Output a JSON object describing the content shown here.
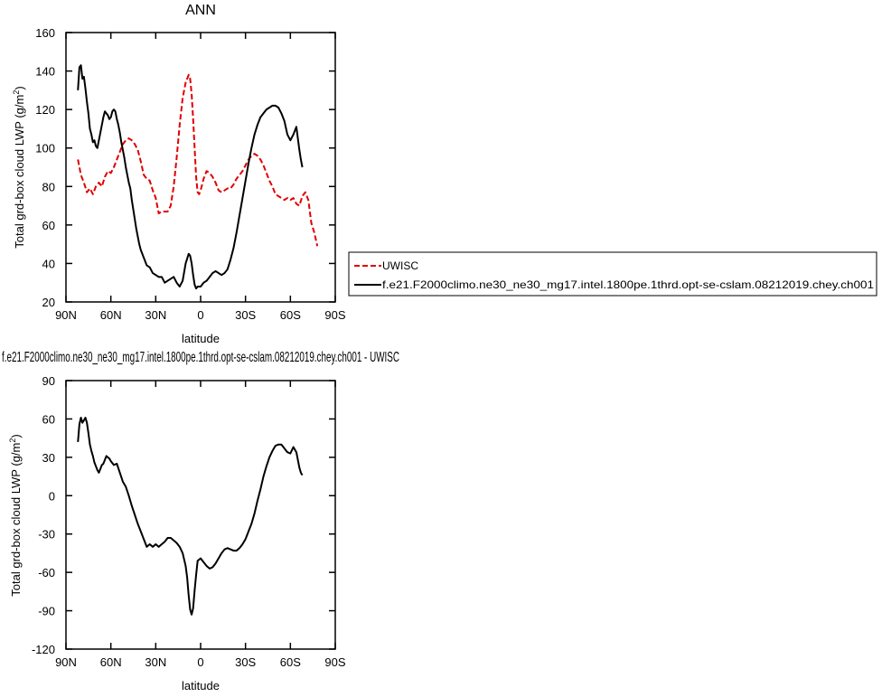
{
  "chart_data": [
    {
      "type": "line",
      "title": "ANN",
      "xlabel": "latitude",
      "ylabel": "Total grd-box cloud LWP (g/m",
      "ylabel_sup": "2",
      "ylabel_end": ")",
      "xlim": [
        90,
        -90
      ],
      "ylim": [
        20,
        160
      ],
      "xticks": [
        90,
        60,
        30,
        0,
        -30,
        -60,
        -90
      ],
      "xtick_labels": [
        "90N",
        "60N",
        "30N",
        "0",
        "30S",
        "60S",
        "90S"
      ],
      "yticks": [
        20,
        40,
        60,
        80,
        100,
        120,
        140,
        160
      ],
      "ytick_labels": [
        "20",
        "40",
        "60",
        "80",
        "100",
        "120",
        "140",
        "160"
      ],
      "legend": "right",
      "series": [
        {
          "name": "UWISC",
          "color": "#e00000",
          "dash": "dashed",
          "x": [
            82,
            80,
            78,
            76,
            74,
            72,
            70,
            68,
            66,
            64,
            62,
            60,
            58,
            56,
            54,
            52,
            50,
            48,
            46,
            44,
            42,
            40,
            38,
            36,
            34,
            32,
            30,
            28,
            26,
            24,
            22,
            20,
            18,
            16,
            14,
            12,
            10,
            8,
            7,
            6,
            5,
            4,
            3,
            2,
            1,
            0,
            -2,
            -4,
            -6,
            -8,
            -10,
            -12,
            -14,
            -16,
            -18,
            -20,
            -22,
            -24,
            -26,
            -28,
            -30,
            -32,
            -34,
            -36,
            -38,
            -40,
            -42,
            -44,
            -46,
            -48,
            -50,
            -52,
            -54,
            -56,
            -58,
            -60,
            -62,
            -64,
            -66,
            -68,
            -70,
            -72,
            -74,
            -76,
            -78
          ],
          "y": [
            94,
            86,
            82,
            77,
            79,
            76,
            80,
            82,
            80,
            85,
            88,
            87,
            90,
            94,
            98,
            102,
            104,
            105,
            104,
            102,
            99,
            93,
            86,
            84,
            83,
            78,
            74,
            66,
            67,
            67,
            67,
            70,
            80,
            95,
            112,
            126,
            134,
            138,
            136,
            128,
            115,
            100,
            85,
            77,
            76,
            78,
            84,
            88,
            87,
            85,
            82,
            78,
            77,
            78,
            79,
            79,
            81,
            84,
            86,
            88,
            91,
            94,
            96,
            97,
            96,
            94,
            91,
            87,
            83,
            80,
            76,
            75,
            74,
            73,
            74,
            73,
            74,
            71,
            70,
            75,
            77,
            73,
            61,
            56,
            49
          ]
        },
        {
          "name": "f.e21.F2000climo.ne30_ne30_mg17.intel.1800pe.1thrd.opt-se-cslam.08212019.chey.ch001",
          "color": "#000000",
          "dash": "solid",
          "x": [
            82,
            81,
            80,
            79,
            78,
            77,
            76,
            75,
            74,
            73,
            72,
            71,
            70,
            69,
            68,
            67,
            66,
            65,
            64,
            63,
            62,
            61,
            60,
            59,
            58,
            57,
            56,
            55,
            54,
            53,
            52,
            51,
            50,
            49,
            48,
            47,
            46,
            45,
            44,
            43,
            42,
            41,
            40,
            38,
            36,
            34,
            32,
            30,
            28,
            26,
            24,
            22,
            20,
            18,
            16,
            14,
            12,
            10,
            8,
            7,
            6,
            5,
            4,
            3,
            2,
            1,
            0,
            -2,
            -4,
            -6,
            -8,
            -10,
            -12,
            -14,
            -16,
            -18,
            -20,
            -22,
            -24,
            -26,
            -28,
            -30,
            -32,
            -34,
            -36,
            -38,
            -40,
            -42,
            -44,
            -46,
            -48,
            -50,
            -52,
            -54,
            -56,
            -58,
            -60,
            -62,
            -64,
            -65,
            -66,
            -67,
            -68
          ],
          "y": [
            130,
            142,
            143,
            136,
            137,
            131,
            124,
            118,
            110,
            107,
            103,
            104,
            101,
            100,
            104,
            108,
            112,
            116,
            119,
            118,
            117,
            115,
            116,
            119,
            120,
            119,
            115,
            112,
            108,
            103,
            99,
            95,
            90,
            86,
            82,
            79,
            73,
            68,
            63,
            58,
            54,
            50,
            47,
            43,
            39,
            38,
            35,
            34,
            33,
            33,
            30,
            31,
            32,
            33,
            30,
            28,
            31,
            40,
            45,
            44,
            40,
            34,
            29,
            27,
            28,
            28,
            28,
            30,
            31,
            33,
            35,
            36,
            35,
            34,
            35,
            37,
            42,
            48,
            56,
            65,
            74,
            83,
            92,
            100,
            107,
            112,
            116,
            118,
            120,
            121,
            122,
            122,
            121,
            118,
            114,
            107,
            104,
            107,
            111,
            105,
            99,
            94,
            90
          ]
        }
      ]
    },
    {
      "type": "line",
      "title": "f.e21.F2000climo.ne30_ne30_mg17.intel.1800pe.1thrd.opt-se-cslam.08212019.chey.ch001 - UWISC",
      "xlabel": "latitude",
      "ylabel": "Total grd-box cloud LWP (g/m",
      "ylabel_sup": "2",
      "ylabel_end": ")",
      "xlim": [
        90,
        -90
      ],
      "ylim": [
        -120,
        90
      ],
      "xticks": [
        90,
        60,
        30,
        0,
        -30,
        -60,
        -90
      ],
      "xtick_labels": [
        "90N",
        "60N",
        "30N",
        "0",
        "30S",
        "60S",
        "90S"
      ],
      "yticks": [
        -120,
        -90,
        -60,
        -30,
        0,
        30,
        60,
        90
      ],
      "ytick_labels": [
        "-120",
        "-90",
        "-60",
        "-30",
        "0",
        "30",
        "60",
        "90"
      ],
      "series": [
        {
          "name": "",
          "color": "#000000",
          "dash": "solid",
          "x": [
            82,
            81,
            80,
            79,
            78,
            77,
            76,
            75,
            74,
            73,
            72,
            71,
            70,
            69,
            68,
            67,
            66,
            65,
            64,
            63,
            62,
            61,
            60,
            58,
            56,
            54,
            52,
            50,
            48,
            46,
            44,
            42,
            40,
            38,
            36,
            34,
            32,
            30,
            28,
            26,
            24,
            22,
            20,
            18,
            16,
            14,
            12,
            10,
            9,
            8,
            7,
            6,
            5,
            4,
            3,
            2,
            0,
            -2,
            -4,
            -6,
            -8,
            -10,
            -12,
            -14,
            -16,
            -18,
            -20,
            -22,
            -24,
            -26,
            -28,
            -30,
            -32,
            -34,
            -36,
            -38,
            -40,
            -42,
            -44,
            -46,
            -48,
            -50,
            -52,
            -54,
            -56,
            -58,
            -60,
            -62,
            -64,
            -65,
            -66,
            -67,
            -68
          ],
          "y": [
            42,
            56,
            61,
            57,
            59,
            61,
            57,
            49,
            40,
            35,
            31,
            26,
            23,
            20,
            18,
            21,
            24,
            25,
            28,
            31,
            30,
            29,
            27,
            24,
            25,
            18,
            11,
            7,
            0,
            -8,
            -15,
            -22,
            -28,
            -34,
            -40,
            -38,
            -40,
            -38,
            -40,
            -38,
            -36,
            -33,
            -33,
            -35,
            -37,
            -40,
            -45,
            -55,
            -64,
            -78,
            -89,
            -93,
            -88,
            -74,
            -62,
            -51,
            -49,
            -52,
            -55,
            -57,
            -56,
            -53,
            -49,
            -45,
            -42,
            -41,
            -42,
            -43,
            -43,
            -41,
            -38,
            -34,
            -28,
            -22,
            -14,
            -4,
            5,
            15,
            23,
            30,
            35,
            39,
            40,
            40,
            37,
            34,
            33,
            38,
            34,
            28,
            22,
            18,
            16
          ]
        }
      ]
    }
  ]
}
